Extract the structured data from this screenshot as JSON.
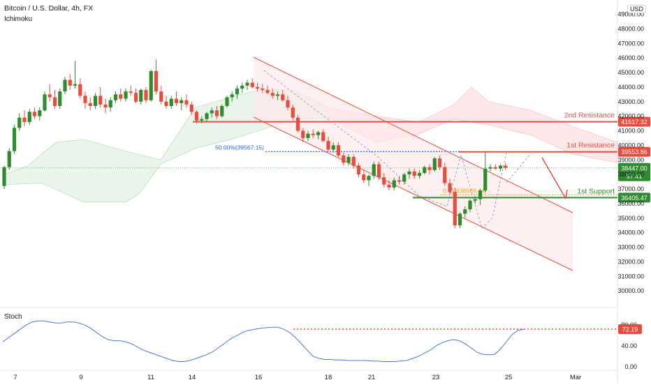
{
  "header": {
    "title": "Bitcoin / U.S. Dollar, 4h, FX",
    "indicator": "Ichimoku",
    "currency": "USD",
    "sub_indicator": "Stoch"
  },
  "chart_data": {
    "type": "candlestick",
    "x_ticks": [
      "7",
      "9",
      "11",
      "14",
      "16",
      "18",
      "21",
      "23",
      "25",
      "Mar"
    ],
    "y_ticks": [
      30000,
      31000,
      32000,
      33000,
      34000,
      35000,
      36000,
      37000,
      38000,
      39000,
      40000,
      41000,
      42000,
      43000,
      44000,
      45000,
      46000,
      47000,
      48000,
      49000
    ],
    "ylim": [
      29000,
      49600
    ],
    "ohlc": [
      [
        37200,
        38600,
        37000,
        38500
      ],
      [
        38500,
        39800,
        38300,
        39600
      ],
      [
        39600,
        41400,
        39400,
        41200
      ],
      [
        41200,
        42200,
        41000,
        41900
      ],
      [
        41900,
        42400,
        41300,
        41600
      ],
      [
        41600,
        42500,
        41400,
        42300
      ],
      [
        42300,
        42600,
        41800,
        42000
      ],
      [
        42000,
        42600,
        41700,
        42400
      ],
      [
        42400,
        43700,
        42300,
        43500
      ],
      [
        43500,
        44200,
        43000,
        43300
      ],
      [
        43300,
        43800,
        42500,
        42700
      ],
      [
        42700,
        43900,
        42500,
        43700
      ],
      [
        43700,
        44700,
        43500,
        44500
      ],
      [
        44500,
        44900,
        43800,
        44100
      ],
      [
        44100,
        45800,
        43900,
        44200
      ],
      [
        44200,
        44600,
        43200,
        43400
      ],
      [
        43400,
        43700,
        42500,
        42900
      ],
      [
        42900,
        43300,
        42400,
        42700
      ],
      [
        42700,
        43600,
        42500,
        43400
      ],
      [
        43400,
        44000,
        42600,
        42800
      ],
      [
        42800,
        43200,
        42200,
        42600
      ],
      [
        42600,
        43300,
        42300,
        43100
      ],
      [
        43100,
        43700,
        42900,
        43500
      ],
      [
        43500,
        43900,
        43000,
        43200
      ],
      [
        43200,
        43900,
        43000,
        43700
      ],
      [
        43700,
        44100,
        43400,
        43600
      ],
      [
        43600,
        43900,
        42900,
        43000
      ],
      [
        43000,
        43900,
        42800,
        43800
      ],
      [
        43800,
        44000,
        42900,
        43100
      ],
      [
        43100,
        45200,
        43000,
        45100
      ],
      [
        45100,
        45900,
        43500,
        43700
      ],
      [
        43700,
        44100,
        42800,
        43000
      ],
      [
        43000,
        43400,
        42500,
        42700
      ],
      [
        42700,
        43400,
        42500,
        43200
      ],
      [
        43200,
        43700,
        42700,
        42900
      ],
      [
        42900,
        43300,
        42400,
        43100
      ],
      [
        43100,
        43500,
        42600,
        42800
      ],
      [
        42800,
        43000,
        42100,
        42300
      ],
      [
        42300,
        42400,
        41500,
        41700
      ],
      [
        41700,
        42000,
        41500,
        41800
      ],
      [
        41800,
        42300,
        41600,
        42200
      ],
      [
        42200,
        42600,
        41900,
        42400
      ],
      [
        42400,
        42700,
        41800,
        42000
      ],
      [
        42000,
        42800,
        41900,
        42700
      ],
      [
        42700,
        43400,
        42600,
        43300
      ],
      [
        43300,
        43700,
        43000,
        43500
      ],
      [
        43500,
        44100,
        43200,
        43900
      ],
      [
        43900,
        44300,
        43600,
        44100
      ],
      [
        44100,
        44500,
        43800,
        44300
      ],
      [
        44300,
        44600,
        43900,
        44000
      ],
      [
        44000,
        44300,
        43700,
        43900
      ],
      [
        43900,
        44200,
        43600,
        43800
      ],
      [
        43800,
        44100,
        43500,
        43600
      ],
      [
        43600,
        43900,
        43200,
        43400
      ],
      [
        43400,
        43700,
        43100,
        43500
      ],
      [
        43500,
        43800,
        43000,
        43100
      ],
      [
        43100,
        43400,
        42400,
        42600
      ],
      [
        42600,
        42800,
        41700,
        41900
      ],
      [
        41900,
        42100,
        40900,
        41000
      ],
      [
        41000,
        41200,
        40200,
        40500
      ],
      [
        40500,
        41000,
        40300,
        40800
      ],
      [
        40800,
        41100,
        40500,
        40700
      ],
      [
        40700,
        41000,
        40400,
        40900
      ],
      [
        40900,
        41100,
        40200,
        40300
      ],
      [
        40300,
        40600,
        39600,
        39700
      ],
      [
        39700,
        40200,
        39500,
        40000
      ],
      [
        40000,
        40200,
        39200,
        39300
      ],
      [
        39300,
        39500,
        38600,
        38800
      ],
      [
        38800,
        39400,
        38600,
        39200
      ],
      [
        39200,
        39400,
        38400,
        38600
      ],
      [
        38600,
        38800,
        37800,
        38000
      ],
      [
        38000,
        38300,
        37400,
        37600
      ],
      [
        37600,
        38000,
        37200,
        37900
      ],
      [
        37900,
        38900,
        37700,
        38700
      ],
      [
        38700,
        38900,
        37600,
        37800
      ],
      [
        37800,
        38100,
        37100,
        37300
      ],
      [
        37300,
        37600,
        36900,
        37100
      ],
      [
        37100,
        37800,
        36900,
        37600
      ],
      [
        37600,
        37900,
        37300,
        37500
      ],
      [
        37500,
        38100,
        37300,
        38000
      ],
      [
        38000,
        38400,
        37700,
        38200
      ],
      [
        38200,
        38400,
        37700,
        37900
      ],
      [
        37900,
        38300,
        37700,
        38100
      ],
      [
        38100,
        38600,
        38000,
        38500
      ],
      [
        38500,
        38700,
        38000,
        38300
      ],
      [
        38300,
        39200,
        38200,
        39100
      ],
      [
        39100,
        39300,
        38300,
        38500
      ],
      [
        38500,
        38800,
        37200,
        37400
      ],
      [
        37400,
        37700,
        36600,
        36800
      ],
      [
        36800,
        37100,
        34300,
        34500
      ],
      [
        34500,
        35400,
        34300,
        35300
      ],
      [
        35300,
        35800,
        35000,
        35600
      ],
      [
        35600,
        36300,
        35400,
        36200
      ],
      [
        36200,
        36500,
        36000,
        36300
      ],
      [
        36300,
        37000,
        35900,
        36900
      ],
      [
        36900,
        39600,
        36800,
        38400
      ],
      [
        38400,
        38700,
        38200,
        38500
      ],
      [
        38500,
        38700,
        38300,
        38400
      ],
      [
        38400,
        38700,
        38200,
        38600
      ],
      [
        38600,
        38800,
        38300,
        38450
      ]
    ],
    "levels": [
      {
        "label": "2nd Resistance",
        "value": 41617.32,
        "price_text": "41617.32",
        "color": "#e84c3d"
      },
      {
        "label": "1st Resistance",
        "value": 39553.86,
        "price_text": "39553.86",
        "color": "#e84c3d"
      },
      {
        "label": "1st Support",
        "value": 36405.47,
        "price_text": "36405.47",
        "color": "#2e8b2e"
      }
    ],
    "current_price": {
      "value": 38447.0,
      "price_text": "38447.00",
      "countdown": "57:41"
    },
    "fib_labels": {
      "fib50": "50.00%(39567.15)",
      "fib618": "0.618(36589.44)"
    },
    "stoch": {
      "y_ticks": [
        0,
        40,
        80
      ],
      "y_tick_text": [
        "0.00",
        "40.00",
        "80.00"
      ],
      "level": 72.19,
      "level_text": "72.19",
      "values": [
        48,
        56,
        64,
        72,
        80,
        86,
        88,
        88,
        86,
        84,
        84,
        86,
        86,
        84,
        80,
        74,
        66,
        58,
        52,
        50,
        50,
        48,
        44,
        38,
        32,
        28,
        24,
        20,
        16,
        12,
        10,
        10,
        12,
        16,
        20,
        24,
        30,
        38,
        46,
        54,
        60,
        66,
        70,
        72,
        74,
        75,
        76,
        76,
        72,
        66,
        56,
        44,
        32,
        20,
        16,
        14,
        14,
        13,
        13,
        12,
        12,
        12,
        12,
        11,
        11,
        10,
        10,
        10,
        11,
        12,
        16,
        20,
        26,
        32,
        40,
        46,
        50,
        52,
        50,
        44,
        36,
        28,
        24,
        23,
        24,
        34,
        48,
        62,
        70,
        72
      ]
    },
    "colors": {
      "up": "#2e8b2e",
      "down": "#e84c3d",
      "cloud_bull": "#e9f5ea",
      "cloud_bear": "#fde8e9",
      "channel": "#e84c3d",
      "channel_fill": "#fde8e9",
      "stoch_line": "#4a78d6",
      "fib50": "#2962ff",
      "fib618": "#f0a500"
    },
    "grid": false
  }
}
